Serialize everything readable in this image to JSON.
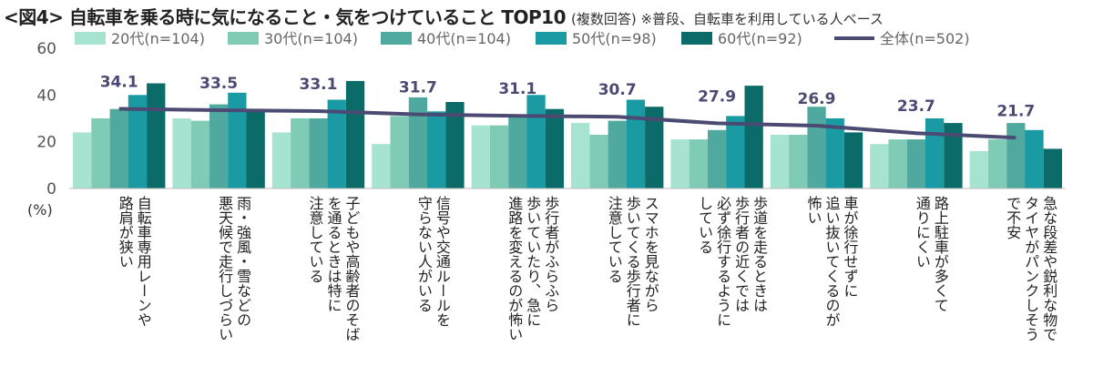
{
  "title": "<図4> 自転車を乗る時に気になること・気をつけていること TOP10",
  "subtitle": "(複数回答) ※普段、自転車を利用している人ベース",
  "chart_data": {
    "type": "bar",
    "ylim": [
      0,
      60
    ],
    "yticks": [
      0,
      20,
      40,
      60
    ],
    "ylabel": "(%)",
    "legend_position": "top",
    "categories": [
      "自転車専用レーンや\n路肩が狭い",
      "雨・強風・雪などの\n悪天候で走行しづらい",
      "子どもや高齢者のそば\nを通るときは特に\n注意している",
      "信号や交通ルールを\n守らない人がいる",
      "歩行者がふらふら\n歩いていたり、急に\n進路を変えるのが怖い",
      "スマホを見ながら\n歩いてくる歩行者に\n注意している",
      "歩道を走るときは\n歩行者の近くでは\n必ず徐行するように\nしている",
      "車が徐行せずに\n追い抜いてくるのが\n怖い",
      "路上駐車が多くて\n通りにくい",
      "急な段差や鋭利な物で\nタイヤがパンクしそう\nで不安"
    ],
    "series": [
      {
        "name": "20代(n=104)",
        "color": "#a6e3d1",
        "values": [
          24,
          30,
          24,
          19,
          27,
          28,
          21,
          23,
          19,
          16
        ]
      },
      {
        "name": "30代(n=104)",
        "color": "#7fcbb6",
        "values": [
          30,
          29,
          30,
          31,
          27,
          23,
          21,
          23,
          21,
          21
        ]
      },
      {
        "name": "40代(n=104)",
        "color": "#4fa99e",
        "values": [
          34,
          36,
          30,
          39,
          31,
          29,
          25,
          35,
          21,
          28
        ]
      },
      {
        "name": "50代(n=98)",
        "color": "#1a9ba4",
        "values": [
          40,
          41,
          38,
          33,
          40,
          38,
          31,
          30,
          30,
          25
        ]
      },
      {
        "name": "60代(n=92)",
        "color": "#0b6b68",
        "values": [
          45,
          34,
          46,
          37,
          34,
          35,
          44,
          24,
          28,
          17
        ]
      }
    ],
    "overall": {
      "name": "全体(n=502)",
      "color": "#4b4a72",
      "values": [
        34.1,
        33.5,
        33.1,
        31.7,
        31.1,
        30.7,
        27.9,
        26.9,
        23.7,
        21.7
      ]
    }
  }
}
